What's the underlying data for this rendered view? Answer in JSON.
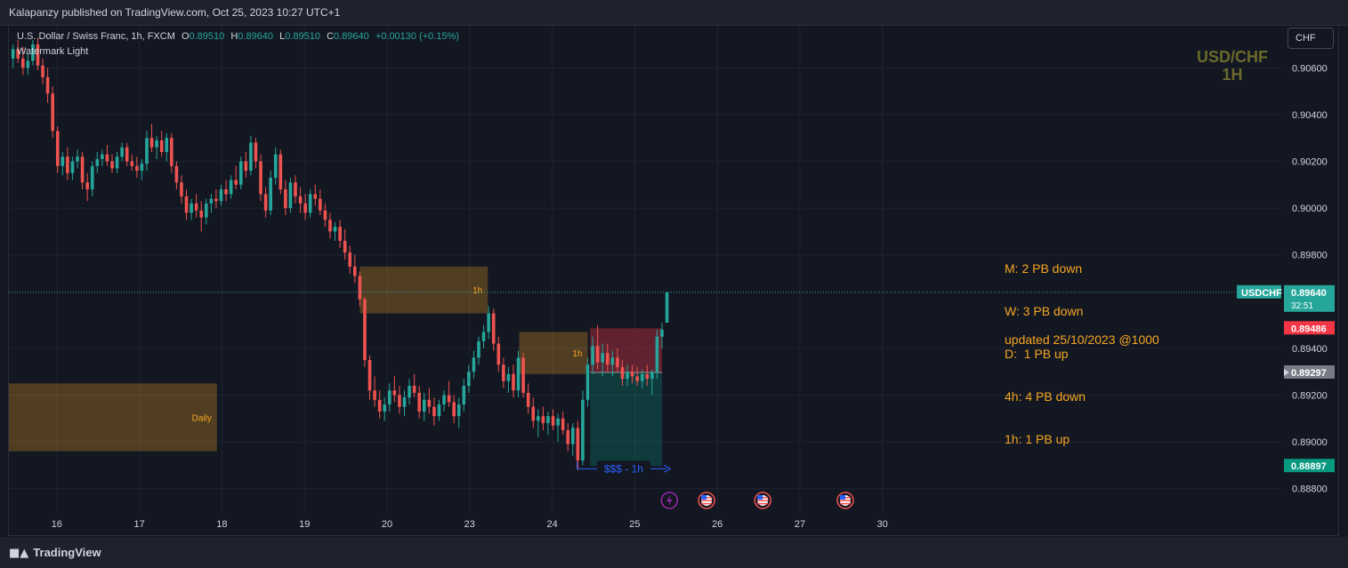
{
  "header": {
    "publisher": "Kalapanzy published on TradingView.com, Oct 25, 2023 10:27 UTC+1"
  },
  "legend": {
    "symbol": "U.S. Dollar / Swiss Franc, 1h, FXCM",
    "open_label": "O",
    "open": "0.89510",
    "high_label": "H",
    "high": "0.89640",
    "low_label": "L",
    "low": "0.89510",
    "close_label": "C",
    "close": "0.89640",
    "change": "+0.00130 (+0.15%)",
    "watermark": "Watermark Light"
  },
  "symbol_watermark": {
    "pair": "USD/CHF",
    "timeframe": "1H"
  },
  "currency_button": "CHF",
  "notes": {
    "lines": [
      "M: 2 PB down",
      "W: 3 PB down",
      "D:  1 PB up",
      "4h: 4 PB down",
      "1h: 1 PB up"
    ],
    "updated": "updated 25/10/2023 @1000"
  },
  "footer": {
    "brand": "TradingView"
  },
  "colors": {
    "up": "#26a69a",
    "down": "#ef5350",
    "zone": "#f5a623",
    "target": "#2962ff",
    "background": "#131722"
  },
  "chart_data": {
    "type": "candlestick",
    "symbol": "USDCHF",
    "timeframe": "1h",
    "y_axis": {
      "ticks": [
        "0.90600",
        "0.90400",
        "0.90200",
        "0.90000",
        "0.89800",
        "0.89400",
        "0.89200",
        "0.89000",
        "0.88800"
      ],
      "range": [
        0.887,
        0.9078
      ]
    },
    "x_axis": {
      "range": [
        15.42,
        30.83
      ],
      "ticks": [
        {
          "label": "16",
          "x": 16
        },
        {
          "label": "17",
          "x": 17
        },
        {
          "label": "18",
          "x": 18
        },
        {
          "label": "19",
          "x": 19
        },
        {
          "label": "20",
          "x": 20
        },
        {
          "label": "23",
          "x": 21
        },
        {
          "label": "24",
          "x": 22
        },
        {
          "label": "25",
          "x": 23
        },
        {
          "label": "26",
          "x": 24
        },
        {
          "label": "27",
          "x": 25
        },
        {
          "label": "30",
          "x": 26
        }
      ]
    },
    "price_badges": [
      {
        "label": "USDCHF",
        "value": "0.89640",
        "sub": "32:51",
        "color": "#26a69a"
      },
      {
        "value": "0.89486",
        "color": "#f23645"
      },
      {
        "value": "0.89297",
        "color": "#787b86"
      },
      {
        "value": "0.88897",
        "color": "#089981"
      }
    ],
    "current_price": 0.8964,
    "zones": [
      {
        "label": "Daily",
        "x0": 15.42,
        "x1": 17.94,
        "y_top": 0.8925,
        "y_bottom": 0.8896
      },
      {
        "label": "1h",
        "x0": 19.67,
        "x1": 21.22,
        "y_top": 0.8975,
        "y_bottom": 0.8955
      },
      {
        "label": "1h",
        "x0": 21.6,
        "x1": 22.43,
        "y_top": 0.8947,
        "y_bottom": 0.8929
      }
    ],
    "position": {
      "x0": 22.46,
      "x1": 23.33,
      "entry": 0.89297,
      "stop": 0.89486,
      "target": 0.88897
    },
    "target_arrow": {
      "label": "$$$ - 1h",
      "x0": 22.3,
      "x1": 23.43,
      "y": 0.88885
    },
    "events": [
      {
        "type": "lightning",
        "x": 23.42
      },
      {
        "type": "us-flag",
        "x": 23.87
      },
      {
        "type": "us-flag",
        "x": 24.55
      },
      {
        "type": "us-flag",
        "x": 25.55
      }
    ],
    "candles": [
      [
        15.47,
        0.9064,
        0.907,
        0.906,
        0.9068
      ],
      [
        15.53,
        0.9068,
        0.9072,
        0.9062,
        0.9064
      ],
      [
        15.59,
        0.9064,
        0.9069,
        0.9057,
        0.906
      ],
      [
        15.65,
        0.906,
        0.9066,
        0.9057,
        0.9063
      ],
      [
        15.71,
        0.9063,
        0.9072,
        0.9061,
        0.907
      ],
      [
        15.77,
        0.907,
        0.9073,
        0.9059,
        0.9061
      ],
      [
        15.83,
        0.9061,
        0.9064,
        0.9053,
        0.9056
      ],
      [
        15.89,
        0.9056,
        0.906,
        0.9045,
        0.9049
      ],
      [
        15.95,
        0.9049,
        0.9052,
        0.903,
        0.9033
      ],
      [
        16.01,
        0.9033,
        0.9035,
        0.9015,
        0.9018
      ],
      [
        16.07,
        0.9018,
        0.9024,
        0.9014,
        0.9022
      ],
      [
        16.13,
        0.9022,
        0.9026,
        0.9012,
        0.9015
      ],
      [
        16.19,
        0.9015,
        0.9022,
        0.9012,
        0.902
      ],
      [
        16.25,
        0.902,
        0.9025,
        0.9017,
        0.9022
      ],
      [
        16.31,
        0.9022,
        0.9024,
        0.9008,
        0.9011
      ],
      [
        16.37,
        0.9011,
        0.9015,
        0.9003,
        0.9008
      ],
      [
        16.43,
        0.9008,
        0.902,
        0.9005,
        0.9018
      ],
      [
        16.49,
        0.9018,
        0.9024,
        0.9015,
        0.9021
      ],
      [
        16.55,
        0.9021,
        0.9025,
        0.9018,
        0.9023
      ],
      [
        16.61,
        0.9023,
        0.9027,
        0.9018,
        0.902
      ],
      [
        16.67,
        0.902,
        0.9023,
        0.9015,
        0.9017
      ],
      [
        16.73,
        0.9017,
        0.9024,
        0.9015,
        0.9022
      ],
      [
        16.79,
        0.9022,
        0.9028,
        0.902,
        0.9026
      ],
      [
        16.85,
        0.9026,
        0.9028,
        0.9018,
        0.902
      ],
      [
        16.91,
        0.902,
        0.9023,
        0.9016,
        0.9018
      ],
      [
        16.97,
        0.9018,
        0.9022,
        0.9013,
        0.9016
      ],
      [
        17.03,
        0.9016,
        0.9021,
        0.9012,
        0.9019
      ],
      [
        17.09,
        0.9019,
        0.9033,
        0.9016,
        0.903
      ],
      [
        17.15,
        0.903,
        0.9036,
        0.9024,
        0.9026
      ],
      [
        17.21,
        0.9026,
        0.9031,
        0.9021,
        0.9029
      ],
      [
        17.27,
        0.9029,
        0.9033,
        0.9022,
        0.9024
      ],
      [
        17.33,
        0.9024,
        0.9032,
        0.902,
        0.903
      ],
      [
        17.39,
        0.903,
        0.9032,
        0.9015,
        0.9018
      ],
      [
        17.45,
        0.9018,
        0.902,
        0.9008,
        0.9011
      ],
      [
        17.51,
        0.9011,
        0.9014,
        0.9002,
        0.9005
      ],
      [
        17.57,
        0.9005,
        0.9008,
        0.8995,
        0.8998
      ],
      [
        17.63,
        0.8998,
        0.9004,
        0.8995,
        0.9002
      ],
      [
        17.69,
        0.9002,
        0.9006,
        0.8996,
        0.8999
      ],
      [
        17.75,
        0.8999,
        0.9003,
        0.899,
        0.8996
      ],
      [
        17.81,
        0.8996,
        0.9004,
        0.8993,
        0.9002
      ],
      [
        17.87,
        0.9002,
        0.9006,
        0.8998,
        0.9004
      ],
      [
        17.93,
        0.9004,
        0.9008,
        0.9,
        0.9003
      ],
      [
        17.99,
        0.9003,
        0.901,
        0.9001,
        0.9008
      ],
      [
        18.05,
        0.9008,
        0.9012,
        0.9003,
        0.9006
      ],
      [
        18.11,
        0.9006,
        0.9014,
        0.9004,
        0.9012
      ],
      [
        18.17,
        0.9012,
        0.9018,
        0.9008,
        0.901
      ],
      [
        18.23,
        0.901,
        0.9022,
        0.9008,
        0.902
      ],
      [
        18.29,
        0.902,
        0.9024,
        0.9013,
        0.9016
      ],
      [
        18.35,
        0.9016,
        0.9031,
        0.9014,
        0.9028
      ],
      [
        18.41,
        0.9028,
        0.903,
        0.9017,
        0.902
      ],
      [
        18.47,
        0.902,
        0.9023,
        0.9003,
        0.9006
      ],
      [
        18.53,
        0.9006,
        0.9009,
        0.8996,
        0.8999
      ],
      [
        18.59,
        0.8999,
        0.9016,
        0.8997,
        0.9013
      ],
      [
        18.65,
        0.9013,
        0.9026,
        0.901,
        0.9023
      ],
      [
        18.71,
        0.9023,
        0.9025,
        0.9006,
        0.9008
      ],
      [
        18.77,
        0.9008,
        0.9012,
        0.8997,
        0.9
      ],
      [
        18.83,
        0.9,
        0.9013,
        0.8998,
        0.9011
      ],
      [
        18.89,
        0.9011,
        0.9014,
        0.9002,
        0.9005
      ],
      [
        18.95,
        0.9005,
        0.9009,
        0.8998,
        0.9002
      ],
      [
        19.01,
        0.9002,
        0.9006,
        0.8995,
        0.8998
      ],
      [
        19.07,
        0.8998,
        0.9008,
        0.8996,
        0.9006
      ],
      [
        19.13,
        0.9006,
        0.901,
        0.9001,
        0.9004
      ],
      [
        19.19,
        0.9004,
        0.9008,
        0.8997,
        0.8999
      ],
      [
        19.25,
        0.8999,
        0.9002,
        0.8992,
        0.8995
      ],
      [
        19.31,
        0.8995,
        0.8998,
        0.8987,
        0.899
      ],
      [
        19.37,
        0.899,
        0.8994,
        0.8986,
        0.8992
      ],
      [
        19.43,
        0.8992,
        0.8995,
        0.8983,
        0.8986
      ],
      [
        19.49,
        0.8986,
        0.8991,
        0.8978,
        0.8981
      ],
      [
        19.55,
        0.8981,
        0.8984,
        0.8972,
        0.8975
      ],
      [
        19.61,
        0.8975,
        0.898,
        0.8968,
        0.8971
      ],
      [
        19.67,
        0.8971,
        0.8973,
        0.8958,
        0.8961
      ],
      [
        19.73,
        0.8961,
        0.8962,
        0.8932,
        0.8935
      ],
      [
        19.79,
        0.8935,
        0.8937,
        0.8918,
        0.8922
      ],
      [
        19.85,
        0.8922,
        0.8928,
        0.8915,
        0.8918
      ],
      [
        19.91,
        0.8918,
        0.8922,
        0.891,
        0.8913
      ],
      [
        19.97,
        0.8913,
        0.8919,
        0.8909,
        0.8916
      ],
      [
        20.03,
        0.8916,
        0.8925,
        0.8913,
        0.8922
      ],
      [
        20.09,
        0.8922,
        0.8928,
        0.8917,
        0.892
      ],
      [
        20.15,
        0.892,
        0.8924,
        0.8912,
        0.8915
      ],
      [
        20.21,
        0.8915,
        0.8922,
        0.8911,
        0.8919
      ],
      [
        20.27,
        0.8919,
        0.8927,
        0.8916,
        0.8924
      ],
      [
        20.33,
        0.8924,
        0.8929,
        0.8919,
        0.8921
      ],
      [
        20.39,
        0.8921,
        0.8924,
        0.891,
        0.8913
      ],
      [
        20.45,
        0.8913,
        0.8921,
        0.8909,
        0.8918
      ],
      [
        20.51,
        0.8918,
        0.8923,
        0.8912,
        0.8915
      ],
      [
        20.57,
        0.8915,
        0.8919,
        0.8907,
        0.8911
      ],
      [
        20.63,
        0.8911,
        0.8918,
        0.8909,
        0.8916
      ],
      [
        20.69,
        0.8916,
        0.8922,
        0.8913,
        0.892
      ],
      [
        20.75,
        0.892,
        0.8926,
        0.8915,
        0.8917
      ],
      [
        20.81,
        0.8917,
        0.892,
        0.8908,
        0.8911
      ],
      [
        20.87,
        0.8911,
        0.8919,
        0.8906,
        0.8916
      ],
      [
        20.93,
        0.8916,
        0.8927,
        0.8913,
        0.8924
      ],
      [
        20.99,
        0.8924,
        0.8933,
        0.8921,
        0.893
      ],
      [
        21.05,
        0.893,
        0.8939,
        0.8927,
        0.8936
      ],
      [
        21.11,
        0.8936,
        0.8945,
        0.8933,
        0.8943
      ],
      [
        21.17,
        0.8943,
        0.895,
        0.894,
        0.8947
      ],
      [
        21.23,
        0.8947,
        0.8958,
        0.8944,
        0.8955
      ],
      [
        21.29,
        0.8955,
        0.8957,
        0.8939,
        0.8942
      ],
      [
        21.35,
        0.8942,
        0.8945,
        0.893,
        0.8933
      ],
      [
        21.41,
        0.8933,
        0.8936,
        0.8923,
        0.8926
      ],
      [
        21.47,
        0.8926,
        0.8932,
        0.8921,
        0.8929
      ],
      [
        21.53,
        0.8929,
        0.8933,
        0.8919,
        0.8922
      ],
      [
        21.59,
        0.8922,
        0.8939,
        0.8919,
        0.8936
      ],
      [
        21.65,
        0.8936,
        0.8938,
        0.8919,
        0.8921
      ],
      [
        21.71,
        0.8921,
        0.8925,
        0.8912,
        0.8915
      ],
      [
        21.77,
        0.8915,
        0.8919,
        0.8906,
        0.8909
      ],
      [
        21.83,
        0.8909,
        0.8914,
        0.8902,
        0.8911
      ],
      [
        21.89,
        0.8911,
        0.8915,
        0.8905,
        0.8908
      ],
      [
        21.95,
        0.8908,
        0.8913,
        0.8903,
        0.8911
      ],
      [
        22.01,
        0.8911,
        0.8914,
        0.8905,
        0.8907
      ],
      [
        22.07,
        0.8907,
        0.8912,
        0.89,
        0.891
      ],
      [
        22.13,
        0.891,
        0.8913,
        0.8903,
        0.8905
      ],
      [
        22.19,
        0.8905,
        0.8908,
        0.8896,
        0.8899
      ],
      [
        22.25,
        0.8899,
        0.8908,
        0.8894,
        0.8906
      ],
      [
        22.31,
        0.8906,
        0.8909,
        0.8888,
        0.8892
      ],
      [
        22.37,
        0.8892,
        0.8922,
        0.889,
        0.8918
      ],
      [
        22.43,
        0.8918,
        0.8936,
        0.8915,
        0.8933
      ],
      [
        22.49,
        0.8933,
        0.8945,
        0.8929,
        0.8941
      ],
      [
        22.55,
        0.8941,
        0.895,
        0.8931,
        0.8934
      ],
      [
        22.61,
        0.8934,
        0.8942,
        0.8928,
        0.8938
      ],
      [
        22.67,
        0.8938,
        0.8942,
        0.893,
        0.8933
      ],
      [
        22.73,
        0.8933,
        0.8939,
        0.8928,
        0.8936
      ],
      [
        22.79,
        0.8936,
        0.894,
        0.893,
        0.8932
      ],
      [
        22.85,
        0.8932,
        0.8935,
        0.8924,
        0.8927
      ],
      [
        22.91,
        0.8927,
        0.8933,
        0.8924,
        0.893
      ],
      [
        22.97,
        0.893,
        0.8933,
        0.8925,
        0.8928
      ],
      [
        23.03,
        0.8928,
        0.8932,
        0.8924,
        0.8926
      ],
      [
        23.09,
        0.8926,
        0.8931,
        0.8923,
        0.8929
      ],
      [
        23.15,
        0.8929,
        0.8933,
        0.8924,
        0.8927
      ],
      [
        23.21,
        0.8927,
        0.8931,
        0.892,
        0.893
      ],
      [
        23.27,
        0.893,
        0.8948,
        0.8927,
        0.8945
      ],
      [
        23.33,
        0.8945,
        0.8951,
        0.894,
        0.8948
      ],
      [
        23.39,
        0.8951,
        0.8964,
        0.8951,
        0.8964
      ]
    ]
  }
}
